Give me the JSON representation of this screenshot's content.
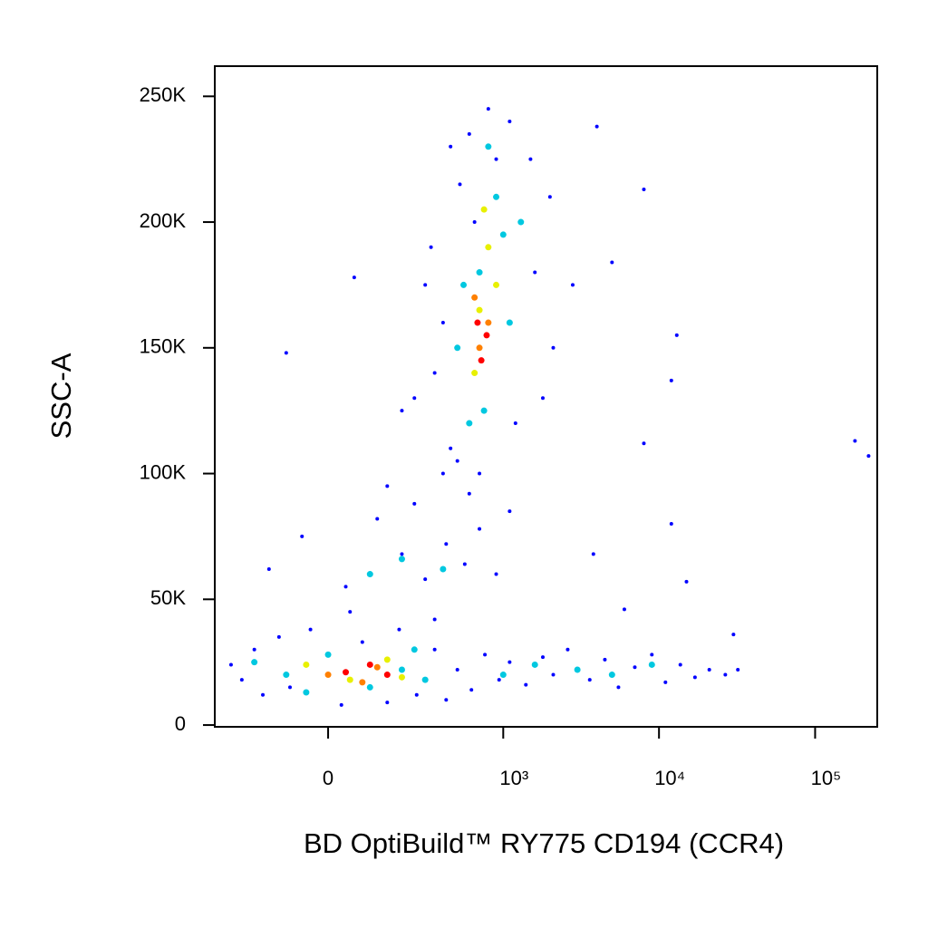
{
  "chart_data": {
    "type": "scatter",
    "x_label": "BD OptiBuild™ RY775 CD194 (CCR4)",
    "y_label": "SSC-A",
    "xscale": "biexponential",
    "xlim": [
      -390,
      250000
    ],
    "ylim": [
      -700,
      262000
    ],
    "xticks": [
      {
        "value": 0,
        "label": "0"
      },
      {
        "value": 1000,
        "label": "10³"
      },
      {
        "value": 10000,
        "label": "10⁴"
      },
      {
        "value": 100000,
        "label": "10⁵"
      }
    ],
    "yticks": [
      0,
      {
        "value": 50000,
        "label": "50K"
      },
      {
        "value": 100000,
        "label": "100K"
      },
      {
        "value": 150000,
        "label": "150K"
      },
      {
        "value": 200000,
        "label": "200K"
      },
      {
        "value": 250000,
        "label": "250K"
      }
    ],
    "series": [
      {
        "color": "#0000ff",
        "x": [
          -300,
          -250,
          -200,
          -170,
          -120,
          -90,
          -40,
          30,
          80,
          150,
          190,
          260,
          350,
          420,
          500,
          620,
          760,
          940,
          1100,
          1400,
          1800,
          2100,
          2600,
          3600,
          4500,
          5500,
          7000,
          9000,
          11000,
          13700,
          17000,
          21000,
          26600,
          32000,
          -150,
          -60,
          40,
          120,
          200,
          300,
          420,
          560,
          250,
          700,
          900,
          1100,
          150,
          400,
          600,
          50,
          350,
          250,
          330,
          450,
          600,
          800,
          1100,
          1500,
          2000,
          400,
          520,
          1600,
          2100,
          350,
          500,
          700,
          1200,
          1800,
          2800,
          300,
          450,
          650,
          900,
          60,
          -100,
          200,
          13000,
          12000,
          8000,
          180000,
          4000,
          8000,
          5000,
          12000,
          15000,
          3800,
          30000,
          6000,
          220000
        ],
        "values": [
          24000,
          18000,
          30000,
          12000,
          35000,
          15000,
          38000,
          8000,
          33000,
          9000,
          38000,
          12000,
          30000,
          10000,
          22000,
          14000,
          28000,
          18000,
          25000,
          16000,
          27000,
          20000,
          30000,
          18000,
          26000,
          15000,
          23000,
          28000,
          17000,
          24000,
          19000,
          22000,
          20000,
          22000,
          62000,
          75000,
          55000,
          82000,
          68000,
          58000,
          72000,
          64000,
          88000,
          78000,
          60000,
          85000,
          95000,
          100000,
          92000,
          45000,
          42000,
          130000,
          190000,
          110000,
          235000,
          245000,
          240000,
          225000,
          210000,
          160000,
          215000,
          180000,
          150000,
          140000,
          105000,
          100000,
          120000,
          130000,
          175000,
          175000,
          230000,
          200000,
          225000,
          178000,
          148000,
          125000,
          155000,
          137000,
          112000,
          113000,
          238000,
          213000,
          184000,
          80000,
          57000,
          68000,
          36000,
          46000,
          107000
        ]
      },
      {
        "color": "#00c8e0",
        "x": [
          -200,
          -100,
          0,
          100,
          200,
          300,
          250,
          -50,
          1000,
          1600,
          3000,
          5000,
          9000,
          200,
          400,
          100,
          500,
          700,
          900,
          1100,
          600,
          800,
          1000,
          550,
          750,
          1300
        ],
        "values": [
          25000,
          20000,
          28000,
          15000,
          22000,
          18000,
          30000,
          13000,
          20000,
          24000,
          22000,
          20000,
          24000,
          66000,
          62000,
          60000,
          150000,
          180000,
          210000,
          160000,
          120000,
          230000,
          195000,
          175000,
          125000,
          200000
        ]
      },
      {
        "color": "#e8f000",
        "x": [
          -50,
          50,
          150,
          200,
          700,
          800,
          650,
          900,
          750
        ],
        "values": [
          24000,
          18000,
          26000,
          19000,
          165000,
          190000,
          140000,
          175000,
          205000
        ]
      },
      {
        "color": "#ff8000",
        "x": [
          0,
          120,
          80,
          700,
          800,
          650
        ],
        "values": [
          20000,
          23000,
          17000,
          150000,
          160000,
          170000
        ]
      },
      {
        "color": "#ff0000",
        "x": [
          40,
          100,
          150,
          720,
          780,
          680
        ],
        "values": [
          21000,
          24000,
          20000,
          145000,
          155000,
          160000
        ]
      }
    ]
  }
}
